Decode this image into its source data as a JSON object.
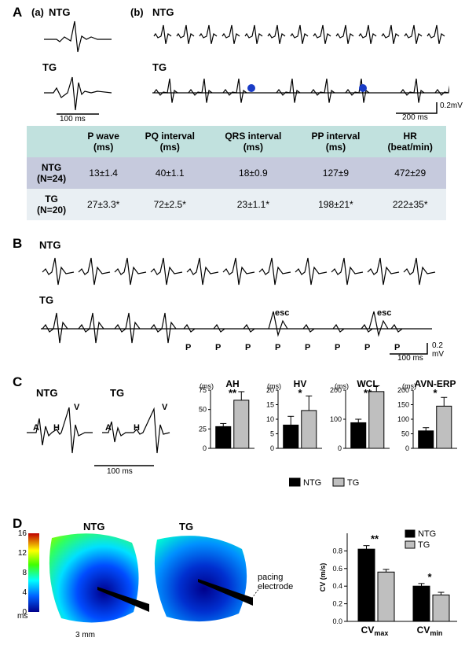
{
  "panelA": {
    "label": "A",
    "sub_a": "(a)",
    "sub_b": "(b)",
    "ntg": "NTG",
    "tg": "TG",
    "scale_a": "100 ms",
    "scale_b_time": "200 ms",
    "scale_b_amp": "0.2mV",
    "table": {
      "columns": [
        "",
        "P  wave (ms)",
        "PQ  interval (ms)",
        "QRS interval (ms)",
        "PP interval (ms)",
        "HR (beat/min)"
      ],
      "rows": [
        [
          "NTG (N=24)",
          "13±1.4",
          "40±1.1",
          "18±0.9",
          "127±9",
          "472±29"
        ],
        [
          "TG (N=20)",
          "27±3.3*",
          "72±2.5*",
          "23±1.1*",
          "198±21*",
          "222±35*"
        ]
      ],
      "header_bg": "#c1e1de",
      "row1_bg": "#c6cadd",
      "row2_bg": "#e9eff3"
    },
    "dot_color": "#1a3cc6"
  },
  "panelB": {
    "label": "B",
    "ntg": "NTG",
    "tg": "TG",
    "p_label": "P",
    "esc_label": "esc",
    "scale_time": "100 ms",
    "scale_amp": "0.2 mV"
  },
  "panelC": {
    "label": "C",
    "ntg": "NTG",
    "tg": "TG",
    "a": "A",
    "h": "H",
    "v": "V",
    "scale": "100 ms",
    "legend_ntg": "NTG",
    "legend_tg": "TG",
    "charts": [
      {
        "title": "AH",
        "unit": "(ms)",
        "ymax": 75,
        "yticks": [
          0,
          25,
          50,
          75
        ],
        "ntg_val": 28,
        "ntg_err": 4,
        "tg_val": 62,
        "tg_err": 11,
        "sig": "**"
      },
      {
        "title": "HV",
        "unit": "(ms)",
        "ymax": 20,
        "yticks": [
          0,
          5,
          10,
          15,
          20
        ],
        "ntg_val": 8,
        "ntg_err": 3,
        "tg_val": 13,
        "tg_err": 5,
        "sig": "*"
      },
      {
        "title": "WCL",
        "unit": "(ms)",
        "ymax": 200,
        "yticks": [
          0,
          100,
          200
        ],
        "ntg_val": 88,
        "ntg_err": 12,
        "tg_val": 195,
        "tg_err": 20,
        "sig": "**"
      },
      {
        "title": "AVN-ERP",
        "unit": "(ms)",
        "ymax": 200,
        "yticks": [
          0,
          50,
          100,
          150,
          200
        ],
        "ntg_val": 60,
        "ntg_err": 11,
        "tg_val": 145,
        "tg_err": 30,
        "sig": "*"
      }
    ],
    "bar_colors": {
      "ntg": "#000000",
      "tg": "#bfbfbf"
    }
  },
  "panelD": {
    "label": "D",
    "ntg": "NTG",
    "tg": "TG",
    "pacing": "pacing electrode",
    "scalebar": "3 mm",
    "colorbar": {
      "min": 0,
      "max": 16,
      "ticks": [
        0,
        4,
        8,
        12,
        16
      ],
      "unit": "ms"
    },
    "chart": {
      "ylabel": "CV (m/s)",
      "ymax": 1.0,
      "yticks": [
        0.0,
        0.2,
        0.4,
        0.6,
        0.8
      ],
      "groups": [
        "CVmax",
        "CVmin"
      ],
      "series": [
        {
          "name": "NTG",
          "color": "#000000",
          "vals": [
            0.82,
            0.4
          ],
          "errs": [
            0.04,
            0.03
          ],
          "sigs": [
            "**",
            "*"
          ]
        },
        {
          "name": "TG",
          "color": "#bfbfbf",
          "vals": [
            0.56,
            0.3
          ],
          "errs": [
            0.03,
            0.03
          ],
          "sigs": [
            "",
            ""
          ]
        }
      ]
    }
  }
}
